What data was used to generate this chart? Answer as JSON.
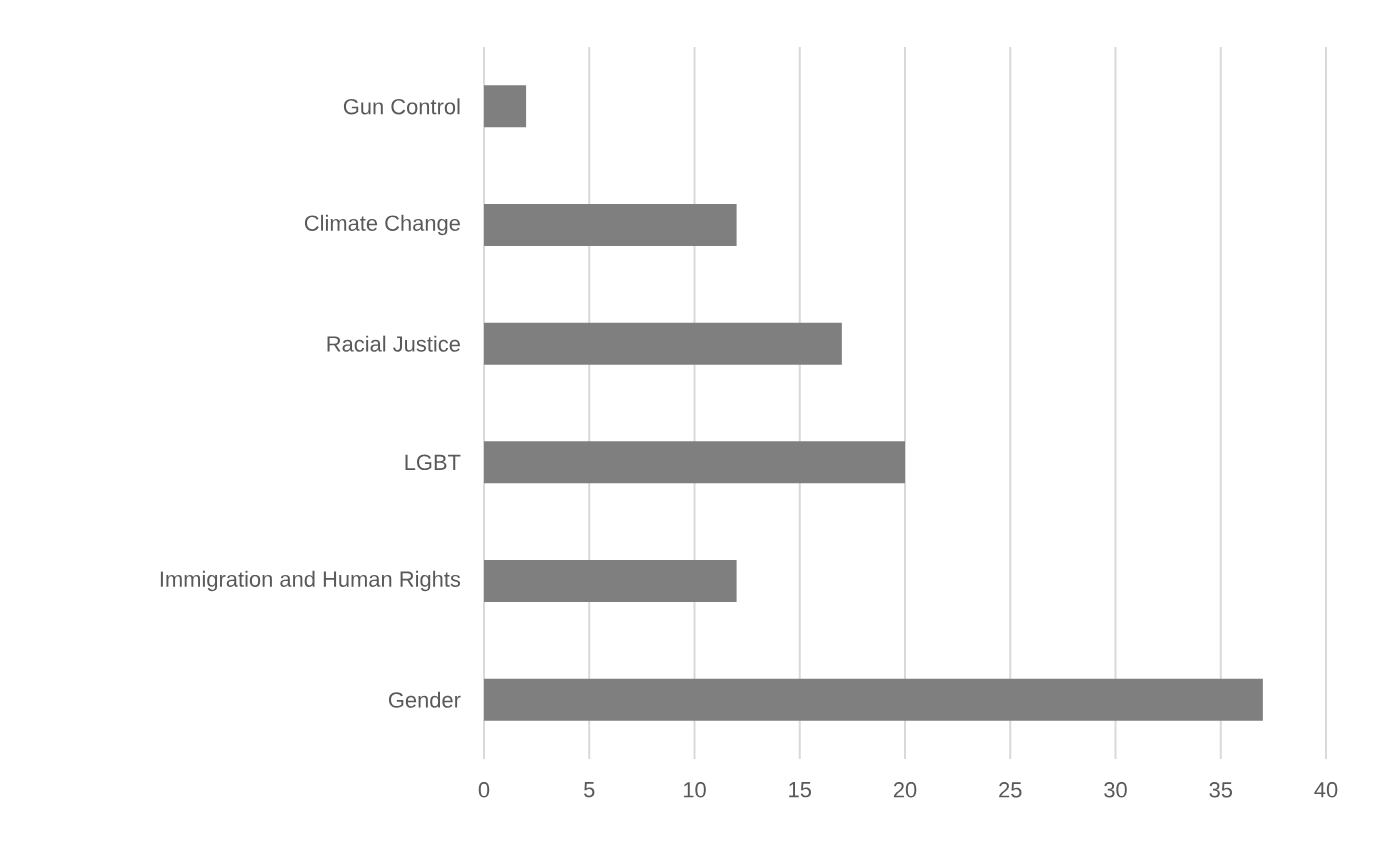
{
  "chart_data": {
    "type": "bar",
    "orientation": "horizontal",
    "categories": [
      "Gun Control",
      "Climate Change",
      "Racial Justice",
      "LGBT",
      "Immigration and Human Rights",
      "Gender"
    ],
    "values": [
      2,
      12,
      17,
      20,
      12,
      37
    ],
    "color": "#7f7f7f",
    "xlim": [
      0,
      40
    ],
    "xticks": [
      0,
      5,
      10,
      15,
      20,
      25,
      30,
      35,
      40
    ],
    "grid": "x"
  }
}
